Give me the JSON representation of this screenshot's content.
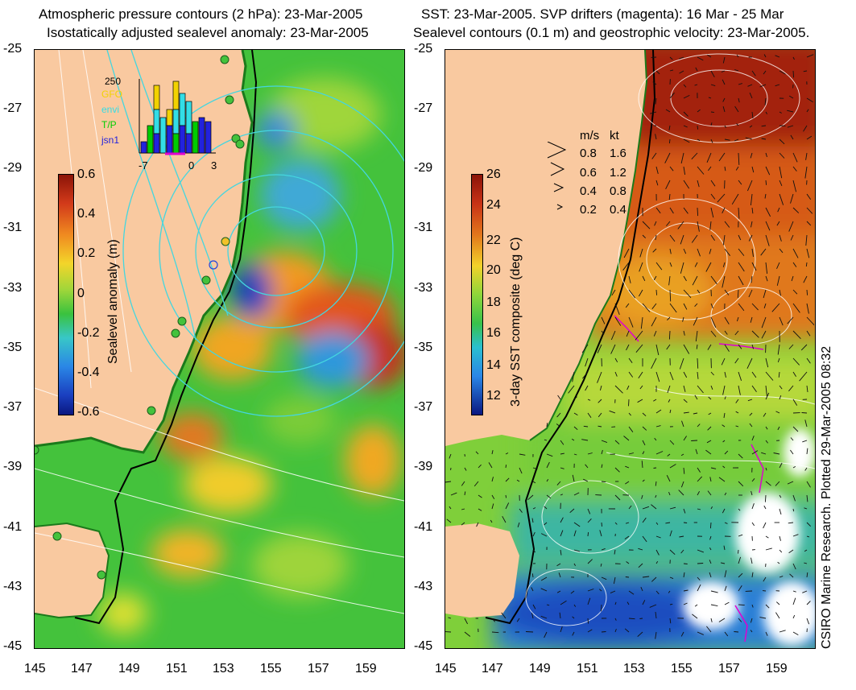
{
  "left_panel": {
    "title_line1": "Atmospheric pressure contours (2 hPa): 23-Mar-2005",
    "title_line2": "Isostatically adjusted sealevel anomaly: 23-Mar-2005",
    "colorbar": {
      "label": "Sealevel anomaly (m)",
      "ticks": [
        "0.6",
        "0.4",
        "0.2",
        "0",
        "-0.2",
        "-0.4",
        "-0.6"
      ]
    },
    "inset": {
      "count_label": "250",
      "missions": [
        {
          "name": "GFO",
          "color": "#f2d200"
        },
        {
          "name": "envi",
          "color": "#33dde6"
        },
        {
          "name": "T/P",
          "color": "#00cc00"
        },
        {
          "name": "jsn1",
          "color": "#2222dd"
        }
      ],
      "axis_ticks": [
        "-7",
        "0",
        "3"
      ]
    }
  },
  "right_panel": {
    "title_line1": "SST: 23-Mar-2005. SVP drifters (magenta): 16 Mar - 25 Mar",
    "title_line2": "Sealevel contours (0.1 m) and geostrophic velocity: 23-Mar-2005.",
    "colorbar": {
      "label": "3-day SST composite (deg C)",
      "ticks": [
        "26",
        "24",
        "22",
        "20",
        "18",
        "16",
        "14",
        "12"
      ]
    },
    "velocity_legend": {
      "header_ms": "m/s",
      "header_kt": "kt",
      "rows": [
        {
          "ms": "0.8",
          "kt": "1.6"
        },
        {
          "ms": "0.6",
          "kt": "1.2"
        },
        {
          "ms": "0.4",
          "kt": "0.8"
        },
        {
          "ms": "0.2",
          "kt": "0.4"
        }
      ]
    },
    "credit": "CSIRO Marine Research. Plotted 29-Mar-2005 08:32"
  },
  "axes": {
    "lat_ticks": [
      "-25",
      "-27",
      "-29",
      "-31",
      "-33",
      "-35",
      "-37",
      "-39",
      "-41",
      "-43",
      "-45"
    ],
    "lon_ticks": [
      "145",
      "147",
      "149",
      "151",
      "153",
      "155",
      "157",
      "159"
    ]
  },
  "colors": {
    "land": "#f9c9a0",
    "sst_warm": "#b8280e",
    "sst_cool": "#1e8ad6",
    "sla_high": "#d8321a",
    "sla_low": "#1e3dbf",
    "pressure_contour": "#44d6df"
  }
}
